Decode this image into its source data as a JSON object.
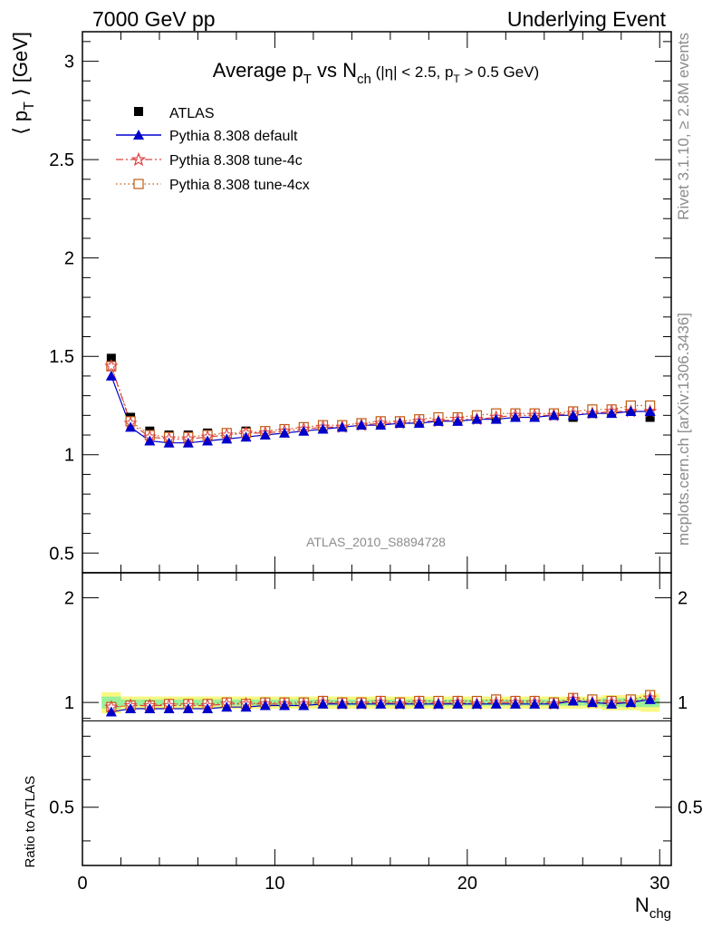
{
  "header": {
    "left": "7000 GeV pp",
    "right": "Underlying Event"
  },
  "side_text": {
    "top": "Rivet 3.1.10, ≥ 2.8M events",
    "bottom": "mcplots.cern.ch [arXiv:1306.3436]"
  },
  "watermark": "ATLAS_2010_S8894728",
  "colors": {
    "atlas": "#000000",
    "default": "#0000cc",
    "tune4c": "#e04040",
    "tune4cx": "#c05a10",
    "band_inner": "#99f099",
    "band_outer": "#f8f880"
  },
  "chart_data": [
    {
      "type": "scatter",
      "title": {
        "main": "Average p",
        "main_sub": "T",
        "vs": " vs N",
        "vs_sub": "ch",
        "cuts_a": " (|η| < 2.5, p",
        "cuts_sub": "T",
        "cuts_b": " > 0.5 GeV)"
      },
      "ylabel": "⟨ p",
      "ylabel_sub": "T",
      "ylabel_tail": " ⟩ [GeV]",
      "ylim": [
        0.4,
        3.15
      ],
      "xlim": [
        0,
        30.6
      ],
      "yticks": [
        "0.5",
        "1",
        "1.5",
        "2",
        "2.5",
        "3"
      ],
      "ytick_values": [
        0.5,
        1,
        1.5,
        2,
        2.5,
        3
      ],
      "x": [
        1.5,
        2.5,
        3.5,
        4.5,
        5.5,
        6.5,
        7.5,
        8.5,
        9.5,
        10.5,
        11.5,
        12.5,
        13.5,
        14.5,
        15.5,
        16.5,
        17.5,
        18.5,
        19.5,
        20.5,
        21.5,
        22.5,
        23.5,
        24.5,
        25.5,
        26.5,
        27.5,
        28.5,
        29.5
      ],
      "series": [
        {
          "name": "ATLAS",
          "values": [
            1.49,
            1.19,
            1.12,
            1.1,
            1.1,
            1.11,
            1.11,
            1.12,
            1.12,
            1.13,
            1.14,
            1.14,
            1.15,
            1.16,
            1.16,
            1.17,
            1.17,
            1.18,
            1.18,
            1.19,
            1.19,
            1.2,
            1.2,
            1.21,
            1.19,
            1.21,
            1.22,
            1.22,
            1.19
          ]
        },
        {
          "name": "Pythia 8.308 default",
          "values": [
            1.4,
            1.14,
            1.07,
            1.06,
            1.06,
            1.07,
            1.08,
            1.09,
            1.1,
            1.11,
            1.12,
            1.13,
            1.14,
            1.15,
            1.15,
            1.16,
            1.16,
            1.17,
            1.17,
            1.18,
            1.18,
            1.19,
            1.19,
            1.2,
            1.2,
            1.21,
            1.21,
            1.22,
            1.22
          ]
        },
        {
          "name": "Pythia 8.308 tune-4c",
          "values": [
            1.45,
            1.16,
            1.09,
            1.08,
            1.08,
            1.09,
            1.1,
            1.11,
            1.11,
            1.12,
            1.13,
            1.14,
            1.14,
            1.15,
            1.16,
            1.16,
            1.17,
            1.17,
            1.18,
            1.18,
            1.19,
            1.2,
            1.2,
            1.2,
            1.21,
            1.21,
            1.22,
            1.22,
            1.22
          ]
        },
        {
          "name": "Pythia 8.308 tune-4cx",
          "values": [
            1.45,
            1.17,
            1.1,
            1.09,
            1.09,
            1.1,
            1.11,
            1.11,
            1.12,
            1.13,
            1.14,
            1.15,
            1.15,
            1.16,
            1.17,
            1.17,
            1.18,
            1.19,
            1.19,
            1.2,
            1.21,
            1.21,
            1.21,
            1.21,
            1.22,
            1.23,
            1.23,
            1.25,
            1.25
          ]
        }
      ]
    },
    {
      "type": "scatter",
      "ylabel": "Ratio to ATLAS",
      "xlabel": "N",
      "xlabel_sub": "chg",
      "ylim": [
        0.34,
        2.36
      ],
      "xlim": [
        0,
        30.6
      ],
      "yticks": [
        "0.5",
        "1",
        "2"
      ],
      "ytick_values": [
        0.5,
        1,
        2
      ],
      "xticks": [
        "0",
        "10",
        "20",
        "30"
      ],
      "xtick_values": [
        0,
        10,
        20,
        30
      ],
      "band_inner": [
        0.04,
        0.02,
        0.02,
        0.02,
        0.02,
        0.02,
        0.02,
        0.02,
        0.02,
        0.02,
        0.02,
        0.02,
        0.02,
        0.02,
        0.02,
        0.02,
        0.02,
        0.02,
        0.02,
        0.02,
        0.02,
        0.02,
        0.02,
        0.02,
        0.02,
        0.02,
        0.03,
        0.03,
        0.03
      ],
      "band_outer": [
        0.07,
        0.04,
        0.04,
        0.04,
        0.04,
        0.04,
        0.04,
        0.04,
        0.04,
        0.04,
        0.04,
        0.04,
        0.04,
        0.04,
        0.04,
        0.04,
        0.04,
        0.04,
        0.04,
        0.04,
        0.04,
        0.04,
        0.04,
        0.04,
        0.04,
        0.04,
        0.05,
        0.05,
        0.06
      ],
      "series": [
        {
          "name": "ATLAS",
          "values": [
            1,
            1,
            1,
            1,
            1,
            1,
            1,
            1,
            1,
            1,
            1,
            1,
            1,
            1,
            1,
            1,
            1,
            1,
            1,
            1,
            1,
            1,
            1,
            1,
            1,
            1,
            1,
            1,
            1
          ]
        },
        {
          "name": "Pythia 8.308 default",
          "values": [
            0.94,
            0.96,
            0.96,
            0.96,
            0.96,
            0.96,
            0.97,
            0.97,
            0.98,
            0.98,
            0.98,
            0.99,
            0.99,
            0.99,
            0.99,
            0.99,
            0.99,
            0.99,
            0.99,
            0.99,
            0.99,
            0.99,
            0.99,
            0.99,
            1.01,
            1.0,
            0.99,
            1.0,
            1.02
          ]
        },
        {
          "name": "Pythia 8.308 tune-4c",
          "values": [
            0.97,
            0.98,
            0.98,
            0.98,
            0.98,
            0.98,
            0.99,
            0.99,
            0.99,
            0.99,
            0.99,
            1.0,
            0.99,
            0.99,
            1.0,
            0.99,
            1.0,
            0.99,
            1.0,
            0.99,
            1.0,
            1.0,
            1.0,
            0.99,
            1.02,
            1.0,
            1.0,
            1.0,
            1.03
          ]
        },
        {
          "name": "Pythia 8.308 tune-4cx",
          "values": [
            0.97,
            0.98,
            0.98,
            0.99,
            0.99,
            0.99,
            1.0,
            0.99,
            1.0,
            1.0,
            1.0,
            1.01,
            1.0,
            1.0,
            1.01,
            1.0,
            1.01,
            1.01,
            1.01,
            1.01,
            1.02,
            1.01,
            1.01,
            1.0,
            1.03,
            1.02,
            1.01,
            1.02,
            1.05
          ]
        }
      ]
    }
  ]
}
